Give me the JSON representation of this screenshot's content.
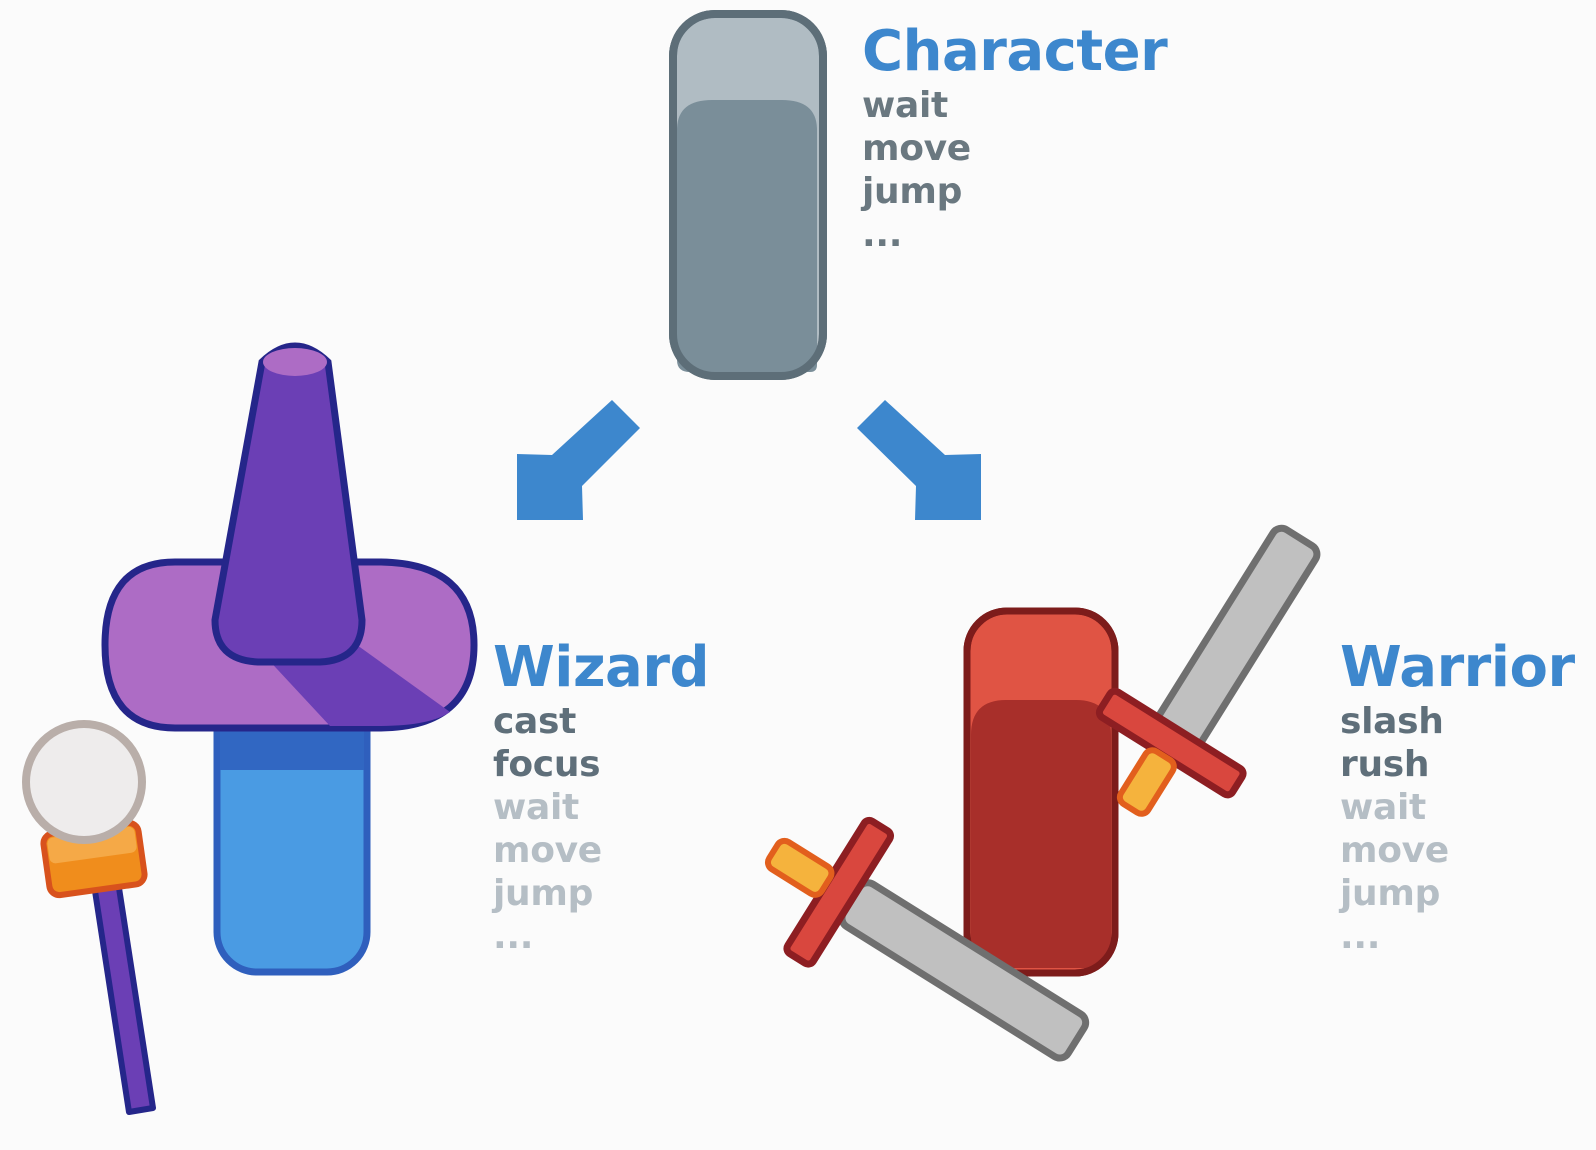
{
  "colors": {
    "background": "#fbfbfb",
    "title": "#3d87cd",
    "own_method": "#5f6f7a",
    "inherited_method": "#b5bec5",
    "arrow": "#3d87cd",
    "character_body": "#7a8e99",
    "wizard_hat": "#6b3fb5",
    "wizard_body": "#4a9be3",
    "warrior_body": "#a82f2a",
    "sword_blade": "#c0c0c0"
  },
  "icons": [
    "character-figure",
    "arrow-down-left-icon",
    "arrow-down-right-icon",
    "wizard-hat-icon",
    "wizard-wand-icon",
    "warrior-sword-icon"
  ],
  "character": {
    "title": "Character",
    "methods": [
      "wait",
      "move",
      "jump",
      "..."
    ]
  },
  "wizard": {
    "title": "Wizard",
    "own_methods": [
      "cast",
      "focus"
    ],
    "inherited_methods": [
      "wait",
      "move",
      "jump",
      "..."
    ]
  },
  "warrior": {
    "title": "Warrior",
    "own_methods": [
      "slash",
      "rush"
    ],
    "inherited_methods": [
      "wait",
      "move",
      "jump",
      "..."
    ]
  }
}
